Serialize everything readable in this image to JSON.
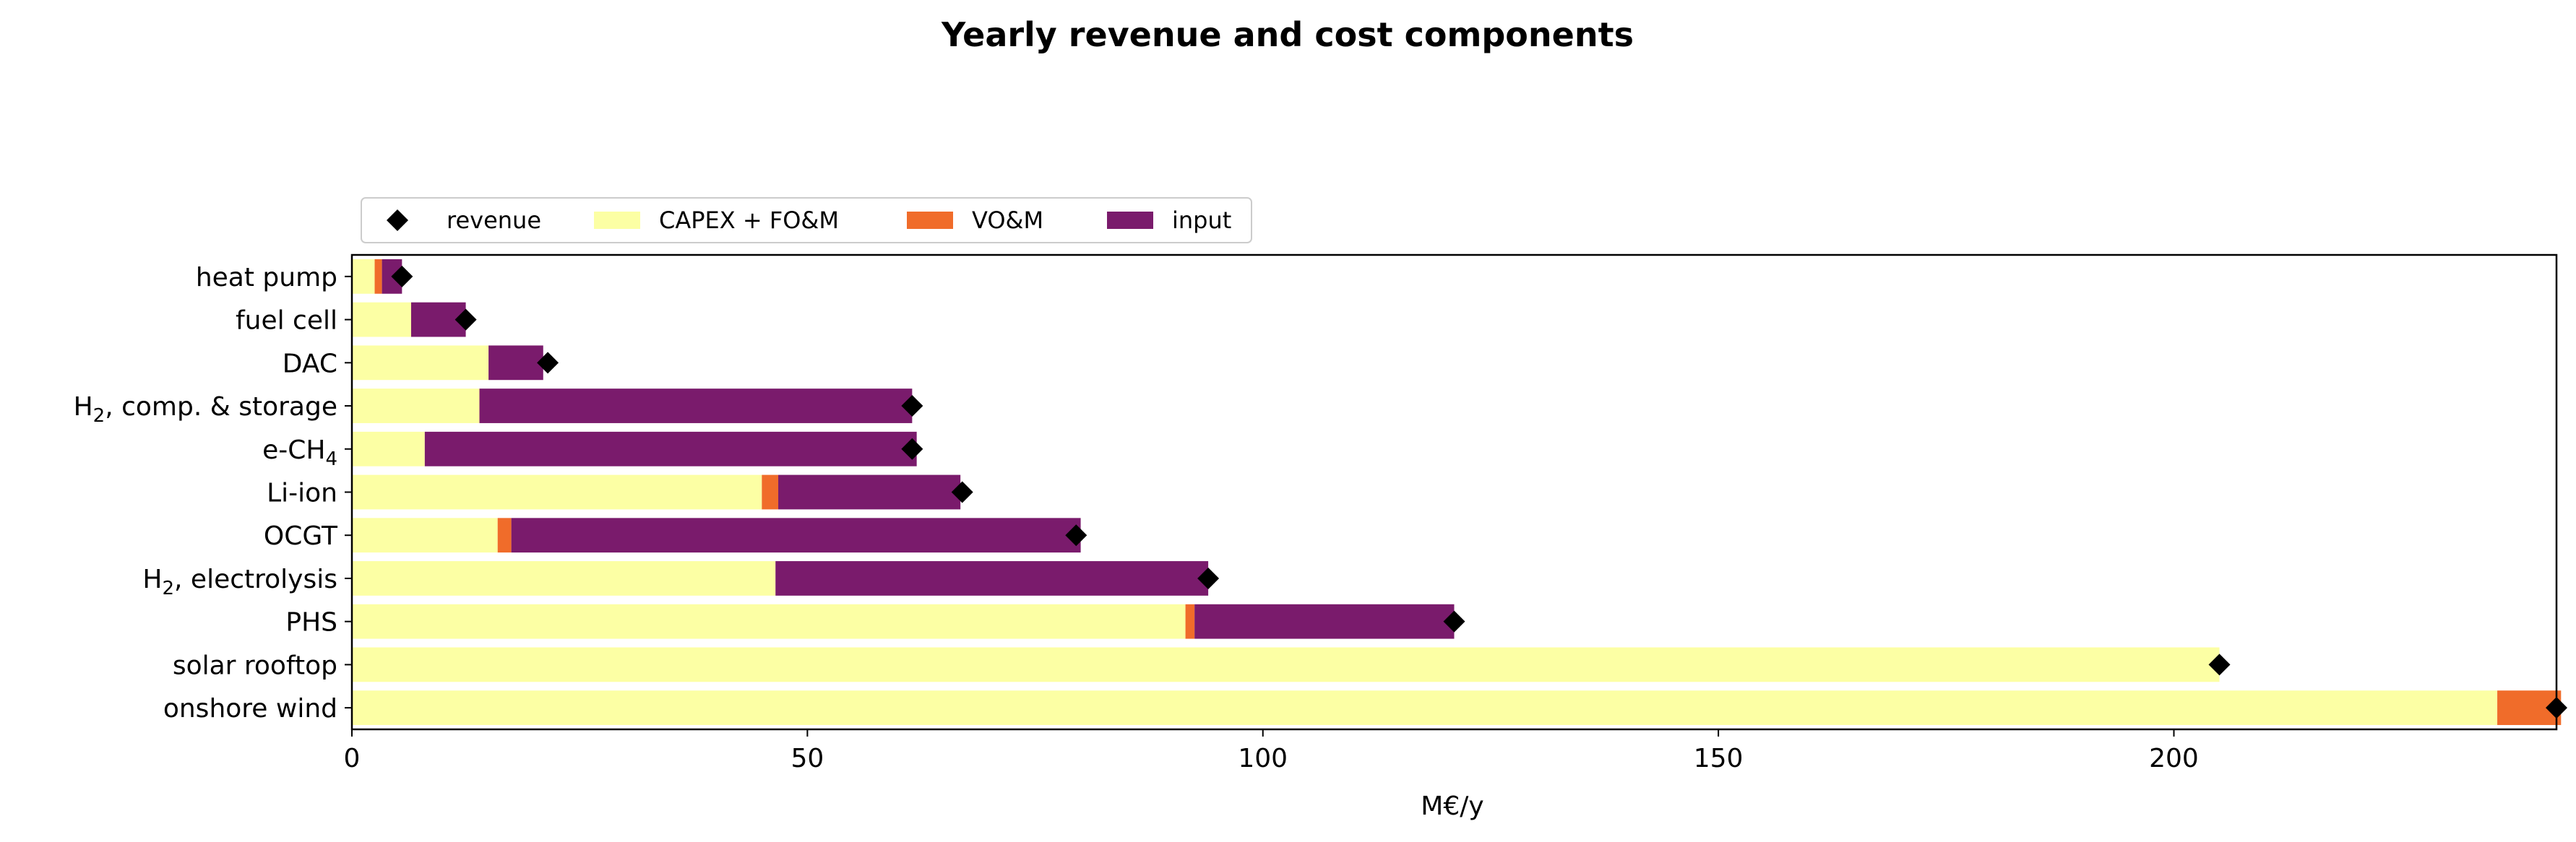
{
  "chart_data": {
    "type": "bar",
    "orientation": "horizontal",
    "stacked": true,
    "title": "Yearly revenue and cost components",
    "xlabel": "M€/y",
    "ylabel": "",
    "xlim": [
      0,
      242
    ],
    "xticks": [
      0,
      50,
      100,
      150,
      200
    ],
    "grid": false,
    "legend_position": "top-left",
    "categories": [
      "heat pump",
      "fuel cell",
      "DAC",
      "H2, comp. & storage",
      "e-CH4",
      "Li-ion",
      "OCGT",
      "H2, electrolysis",
      "PHS",
      "solar rooftop",
      "onshore wind"
    ],
    "series": [
      {
        "name": "CAPEX + FO&M",
        "color": "#fcffa4",
        "values": [
          2.5,
          6.5,
          15,
          14,
          8,
          45,
          16,
          46.5,
          91.5,
          205,
          235.5
        ]
      },
      {
        "name": "VO&M",
        "color": "#f06c2a",
        "values": [
          0.8,
          0,
          0,
          0,
          0,
          1.8,
          1.5,
          0,
          1,
          0,
          7
        ]
      },
      {
        "name": "input",
        "color": "#7a1b6c",
        "values": [
          2.2,
          6,
          6,
          47.5,
          54,
          20,
          62.5,
          47.5,
          28.5,
          0,
          0
        ]
      }
    ],
    "markers": {
      "name": "revenue",
      "color": "#000000",
      "symbol": "diamond",
      "values": [
        5.5,
        12.5,
        21.5,
        61.5,
        61.5,
        67,
        79.5,
        94,
        121,
        205,
        242
      ]
    }
  }
}
